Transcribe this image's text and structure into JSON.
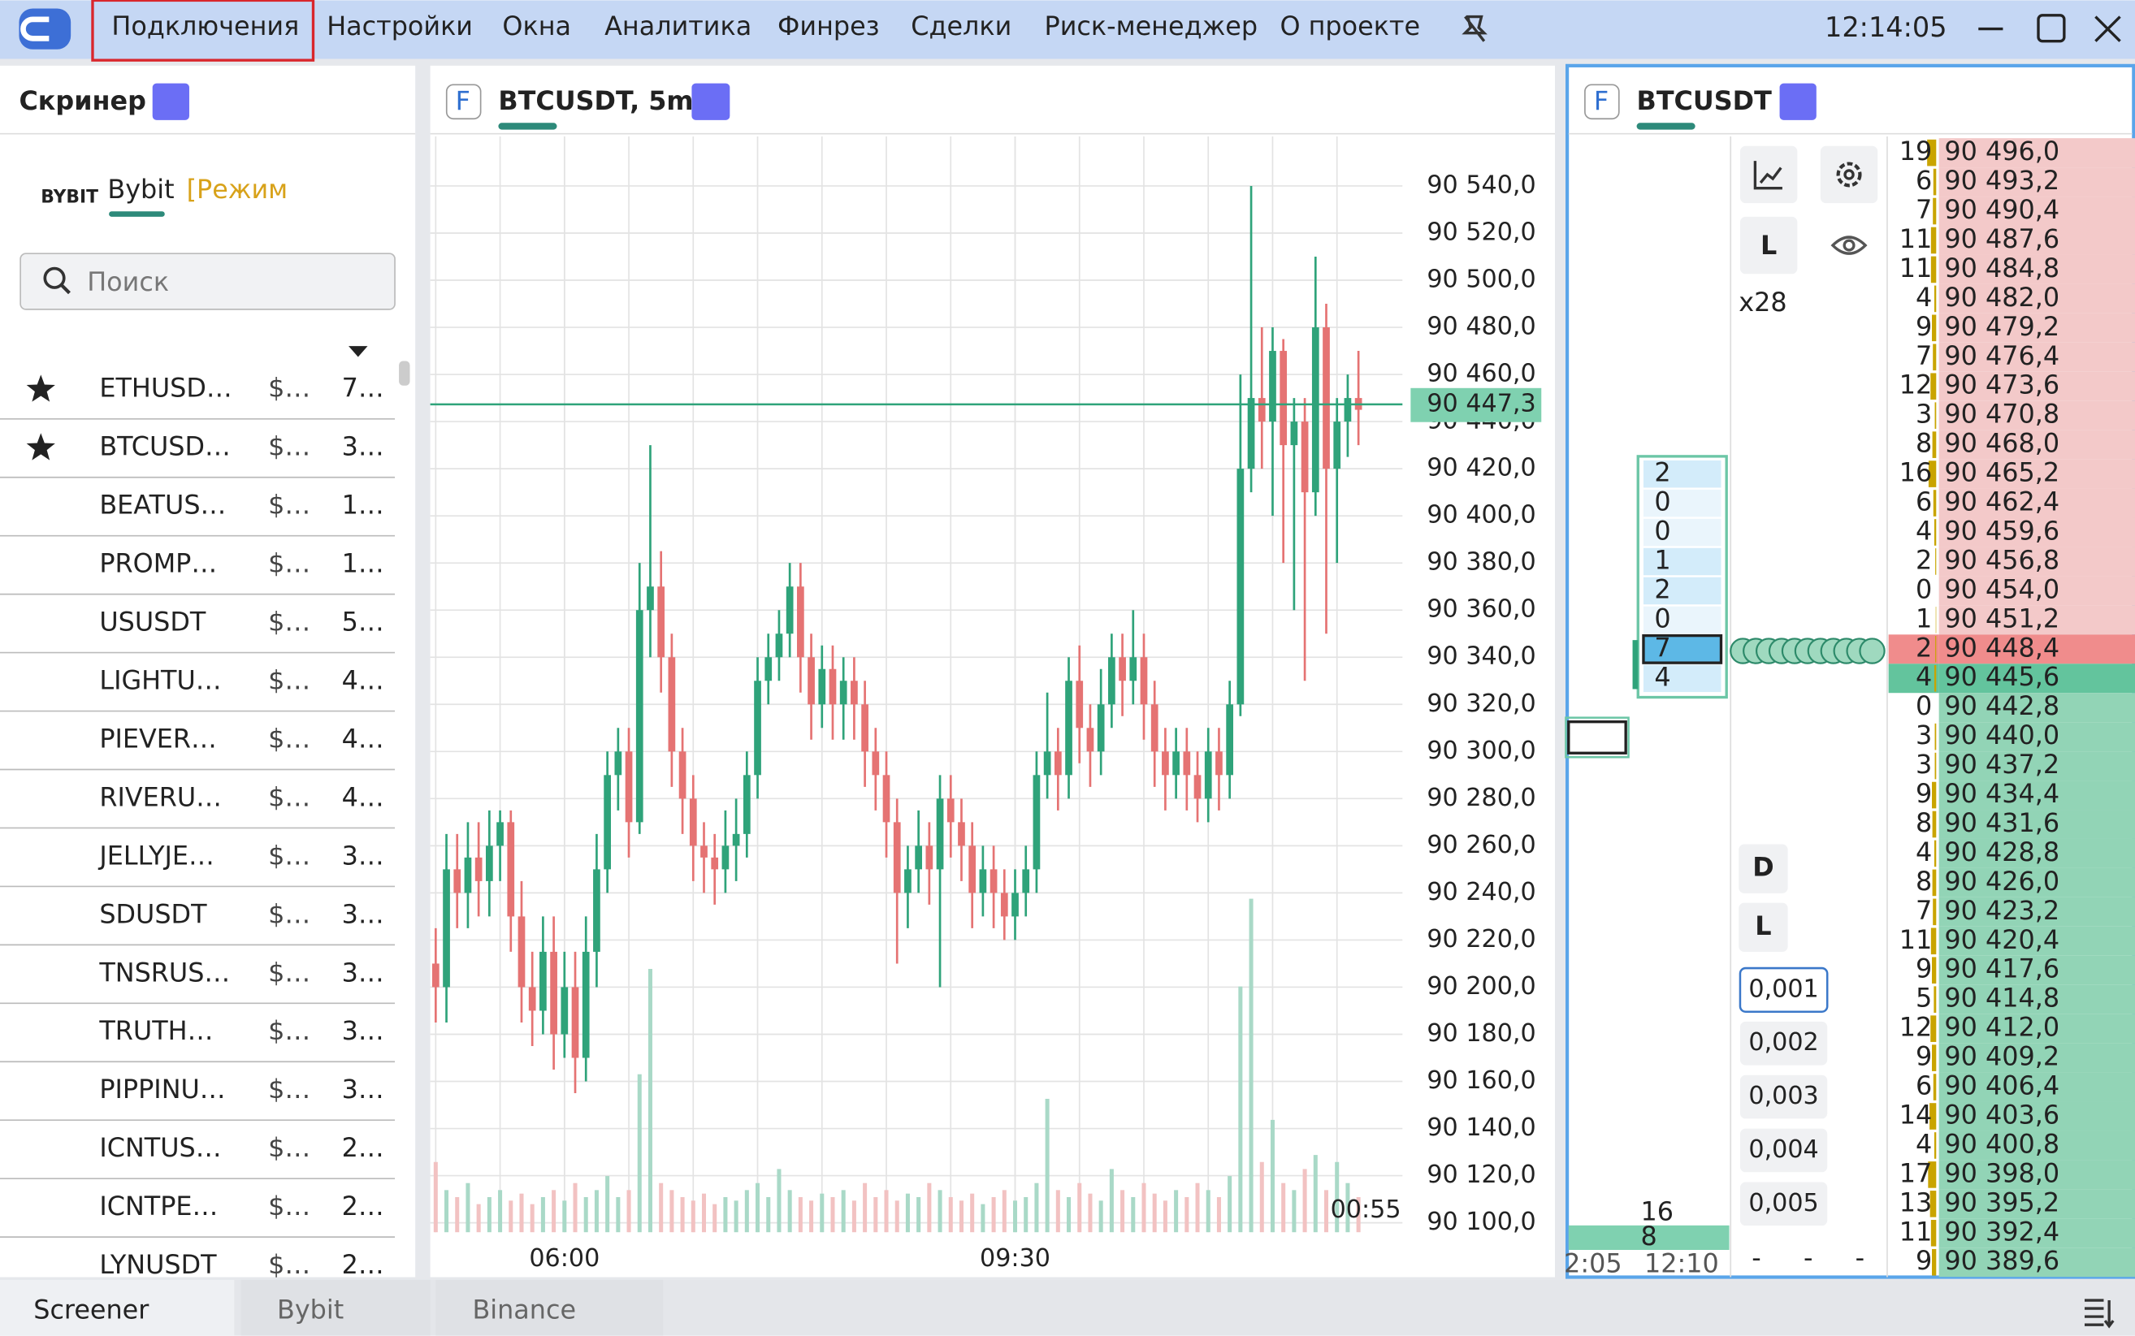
{
  "menu": [
    "Подключения",
    "Настройки",
    "Окна",
    "Аналитика",
    "Финрез",
    "Сделки",
    "Риск-менеджер",
    "О проекте"
  ],
  "clock": "12:14:05",
  "screener": {
    "title": "Скринер",
    "exchange_logo": "BYBIT",
    "exchange": "Bybit",
    "mode": "[Режим",
    "search_placeholder": "Поиск",
    "rows": [
      {
        "star": true,
        "symbol": "ETHUSD…",
        "price": "$…",
        "value": "7…"
      },
      {
        "star": true,
        "symbol": "BTCUSD…",
        "price": "$…",
        "value": "3…"
      },
      {
        "star": false,
        "symbol": "BEATUS…",
        "price": "$…",
        "value": "1…"
      },
      {
        "star": false,
        "symbol": "PROMP…",
        "price": "$…",
        "value": "1…"
      },
      {
        "star": false,
        "symbol": "USUSDT",
        "price": "$…",
        "value": "5…"
      },
      {
        "star": false,
        "symbol": "LIGHTU…",
        "price": "$…",
        "value": "4…"
      },
      {
        "star": false,
        "symbol": "PIEVER…",
        "price": "$…",
        "value": "4…"
      },
      {
        "star": false,
        "symbol": "RIVERU…",
        "price": "$…",
        "value": "4…"
      },
      {
        "star": false,
        "symbol": "JELLYJE…",
        "price": "$…",
        "value": "3…"
      },
      {
        "star": false,
        "symbol": "SDUSDT",
        "price": "$…",
        "value": "3…"
      },
      {
        "star": false,
        "symbol": "TNSRUS…",
        "price": "$…",
        "value": "3…"
      },
      {
        "star": false,
        "symbol": "TRUTH…",
        "price": "$…",
        "value": "3…"
      },
      {
        "star": false,
        "symbol": "PIPPINU…",
        "price": "$…",
        "value": "3…"
      },
      {
        "star": false,
        "symbol": "ICNTUS…",
        "price": "$…",
        "value": "2…"
      },
      {
        "star": false,
        "symbol": "ICNTPE…",
        "price": "$…",
        "value": "2…"
      },
      {
        "star": false,
        "symbol": "LYNUSDT",
        "price": "$…",
        "value": "2…"
      }
    ]
  },
  "chart": {
    "type": "candlestick",
    "badge": "F",
    "title": "BTCUSDT, 5m",
    "ylim": [
      90096,
      90561
    ],
    "yticks": [
      {
        "value": 90540,
        "label": "90 540,0"
      },
      {
        "value": 90520,
        "label": "90 520,0"
      },
      {
        "value": 90500,
        "label": "90 500,0"
      },
      {
        "value": 90480,
        "label": "90 480,0"
      },
      {
        "value": 90460,
        "label": "90 460,0"
      },
      {
        "value": 90440,
        "label": "90 440,0"
      },
      {
        "value": 90420,
        "label": "90 420,0"
      },
      {
        "value": 90400,
        "label": "90 400,0"
      },
      {
        "value": 90380,
        "label": "90 380,0"
      },
      {
        "value": 90360,
        "label": "90 360,0"
      },
      {
        "value": 90340,
        "label": "90 340,0"
      },
      {
        "value": 90320,
        "label": "90 320,0"
      },
      {
        "value": 90300,
        "label": "90 300,0"
      },
      {
        "value": 90280,
        "label": "90 280,0"
      },
      {
        "value": 90260,
        "label": "90 260,0"
      },
      {
        "value": 90240,
        "label": "90 240,0"
      },
      {
        "value": 90220,
        "label": "90 220,0"
      },
      {
        "value": 90200,
        "label": "90 200,0"
      },
      {
        "value": 90180,
        "label": "90 180,0"
      },
      {
        "value": 90160,
        "label": "90 160,0"
      },
      {
        "value": 90140,
        "label": "90 140,0"
      },
      {
        "value": 90120,
        "label": "90 120,0"
      },
      {
        "value": 90100,
        "label": "90 100,0"
      }
    ],
    "xticks": [
      {
        "value": 12,
        "label": "06:00"
      },
      {
        "value": 54,
        "label": "09:30"
      }
    ],
    "last_price": {
      "value": 90447.3,
      "label": "90 447,3"
    },
    "countdown": "00:55",
    "open": [
      90210,
      90200,
      90250,
      90240,
      90255,
      90245,
      90260,
      90270,
      90230,
      90200,
      90190,
      90215,
      90180,
      90200,
      90170,
      90215,
      90250,
      90290,
      90300,
      90270,
      90360,
      90370,
      90340,
      90300,
      90280,
      90260,
      90255,
      90250,
      90260,
      90265,
      90290,
      90330,
      90340,
      90350,
      90370,
      90340,
      90320,
      90335,
      90320,
      90330,
      90320,
      90300,
      90290,
      90270,
      90240,
      90250,
      90260,
      90250,
      90280,
      90270,
      90260,
      90240,
      90250,
      90240,
      90230,
      90240,
      90250,
      90290,
      90300,
      90290,
      90330,
      90310,
      90300,
      90320,
      90340,
      90330,
      90340,
      90320,
      90300,
      90290,
      90300,
      90290,
      90280,
      90300,
      90290,
      90320,
      90420,
      90450,
      90440,
      90470,
      90430,
      90440,
      90410,
      90480,
      90420,
      90440,
      90450
    ],
    "high": [
      90225,
      90265,
      90265,
      90270,
      90270,
      90275,
      90275,
      90275,
      90245,
      90215,
      90230,
      90230,
      90215,
      90215,
      90230,
      90265,
      90300,
      90310,
      90310,
      90380,
      90430,
      90385,
      90350,
      90310,
      90290,
      90270,
      90265,
      90275,
      90280,
      90300,
      90340,
      90350,
      90360,
      90380,
      90380,
      90350,
      90345,
      90345,
      90340,
      90340,
      90330,
      90310,
      90300,
      90280,
      90260,
      90275,
      90270,
      90290,
      90290,
      90280,
      90270,
      90260,
      90260,
      90250,
      90250,
      90260,
      90300,
      90325,
      90310,
      90340,
      90345,
      90320,
      90335,
      90350,
      90350,
      90360,
      90350,
      90330,
      90310,
      90310,
      90310,
      90300,
      90310,
      90310,
      90330,
      90460,
      90540,
      90480,
      90480,
      90475,
      90450,
      90450,
      90510,
      90490,
      90450,
      90460,
      90470
    ],
    "low": [
      90185,
      90185,
      90225,
      90225,
      90230,
      90230,
      90245,
      90215,
      90185,
      90175,
      90180,
      90165,
      90170,
      90155,
      90160,
      90200,
      90240,
      90275,
      90255,
      90265,
      90340,
      90325,
      90285,
      90265,
      90245,
      90240,
      90235,
      90240,
      90245,
      90255,
      90280,
      90320,
      90330,
      90340,
      90325,
      90305,
      90310,
      90305,
      90305,
      90305,
      90285,
      90275,
      90255,
      90210,
      90225,
      90240,
      90235,
      90200,
      90255,
      90245,
      90225,
      90230,
      90225,
      90220,
      90220,
      90230,
      90240,
      90280,
      90275,
      90280,
      90295,
      90285,
      90290,
      90310,
      90315,
      90320,
      90305,
      90285,
      90275,
      90280,
      90275,
      90270,
      90270,
      90275,
      90280,
      90315,
      90410,
      90420,
      90400,
      90380,
      90360,
      90330,
      90400,
      90350,
      90380,
      90425,
      90430
    ],
    "close": [
      90200,
      90250,
      90240,
      90255,
      90245,
      90260,
      90270,
      90230,
      90200,
      90190,
      90215,
      90180,
      90200,
      90170,
      90215,
      90250,
      90290,
      90300,
      90270,
      90360,
      90370,
      90340,
      90300,
      90280,
      90260,
      90255,
      90250,
      90260,
      90265,
      90290,
      90330,
      90340,
      90350,
      90370,
      90340,
      90320,
      90335,
      90320,
      90330,
      90320,
      90300,
      90290,
      90270,
      90240,
      90250,
      90260,
      90250,
      90280,
      90270,
      90260,
      90240,
      90250,
      90240,
      90230,
      90240,
      90250,
      90290,
      90300,
      90290,
      90330,
      90310,
      90300,
      90320,
      90340,
      90330,
      90340,
      90320,
      90300,
      90290,
      90300,
      90290,
      90280,
      90300,
      90290,
      90320,
      90420,
      90450,
      90440,
      90470,
      90430,
      90440,
      90410,
      90480,
      90420,
      90440,
      90450,
      90445
    ],
    "volume": [
      20,
      12,
      10,
      14,
      8,
      10,
      12,
      9,
      11,
      8,
      10,
      12,
      9,
      14,
      10,
      12,
      16,
      10,
      12,
      45,
      75,
      14,
      12,
      10,
      9,
      11,
      8,
      10,
      9,
      12,
      14,
      10,
      18,
      12,
      10,
      9,
      11,
      10,
      12,
      9,
      14,
      10,
      12,
      9,
      11,
      10,
      14,
      12,
      10,
      9,
      11,
      8,
      10,
      12,
      9,
      10,
      14,
      38,
      12,
      10,
      14,
      11,
      9,
      18,
      12,
      10,
      14,
      11,
      9,
      12,
      10,
      14,
      12,
      10,
      16,
      70,
      95,
      20,
      32,
      14,
      12,
      18,
      22,
      12,
      20,
      14,
      10
    ]
  },
  "order_book": {
    "badge": "F",
    "title": "BTCUSDT",
    "leverage": "x28",
    "l_button": "L",
    "d_button": "D",
    "l2_button": "L",
    "steps": [
      "0,001",
      "0,002",
      "0,003",
      "0,004",
      "0,005"
    ],
    "dashes": [
      "-",
      "-",
      "-"
    ],
    "cluster": [
      2,
      0,
      0,
      1,
      2,
      0,
      7,
      4
    ],
    "cluster_total": 16,
    "cluster_bottom": 8,
    "times": [
      "2:05",
      "12:10"
    ],
    "best_ask_index": 17,
    "rows": [
      {
        "qty": 19,
        "price": "90 496,0"
      },
      {
        "qty": 6,
        "price": "90 493,2"
      },
      {
        "qty": 7,
        "price": "90 490,4"
      },
      {
        "qty": 11,
        "price": "90 487,6"
      },
      {
        "qty": 11,
        "price": "90 484,8"
      },
      {
        "qty": 4,
        "price": "90 482,0"
      },
      {
        "qty": 9,
        "price": "90 479,2"
      },
      {
        "qty": 7,
        "price": "90 476,4"
      },
      {
        "qty": 12,
        "price": "90 473,6"
      },
      {
        "qty": 3,
        "price": "90 470,8"
      },
      {
        "qty": 8,
        "price": "90 468,0"
      },
      {
        "qty": 16,
        "price": "90 465,2"
      },
      {
        "qty": 6,
        "price": "90 462,4"
      },
      {
        "qty": 4,
        "price": "90 459,6"
      },
      {
        "qty": 2,
        "price": "90 456,8"
      },
      {
        "qty": 0,
        "price": "90 454,0"
      },
      {
        "qty": 1,
        "price": "90 451,2"
      },
      {
        "qty": 2,
        "price": "90 448,4"
      },
      {
        "qty": 4,
        "price": "90 445,6"
      },
      {
        "qty": 0,
        "price": "90 442,8"
      },
      {
        "qty": 3,
        "price": "90 440,0"
      },
      {
        "qty": 3,
        "price": "90 437,2"
      },
      {
        "qty": 9,
        "price": "90 434,4"
      },
      {
        "qty": 8,
        "price": "90 431,6"
      },
      {
        "qty": 4,
        "price": "90 428,8"
      },
      {
        "qty": 8,
        "price": "90 426,0"
      },
      {
        "qty": 7,
        "price": "90 423,2"
      },
      {
        "qty": 11,
        "price": "90 420,4"
      },
      {
        "qty": 9,
        "price": "90 417,6"
      },
      {
        "qty": 5,
        "price": "90 414,8"
      },
      {
        "qty": 12,
        "price": "90 412,0"
      },
      {
        "qty": 9,
        "price": "90 409,2"
      },
      {
        "qty": 6,
        "price": "90 406,4"
      },
      {
        "qty": 14,
        "price": "90 403,6"
      },
      {
        "qty": 4,
        "price": "90 400,8"
      },
      {
        "qty": 17,
        "price": "90 398,0"
      },
      {
        "qty": 13,
        "price": "90 395,2"
      },
      {
        "qty": 11,
        "price": "90 392,4"
      },
      {
        "qty": 9,
        "price": "90 389,6"
      }
    ]
  },
  "tabs": [
    "Screener",
    "Bybit",
    "Binance"
  ]
}
